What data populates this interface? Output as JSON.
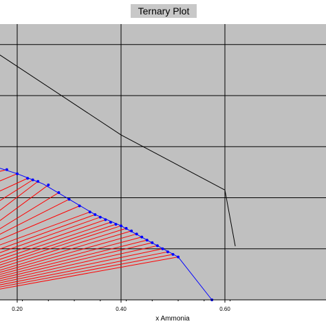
{
  "chart_data": {
    "type": "scatter",
    "title": "Ternary Plot",
    "xlabel": "x Ammonia",
    "ylabel": "",
    "xlim": [
      0.16,
      0.62
    ],
    "ylim": [
      0.0,
      0.54
    ],
    "x_ticks": [
      "0.20",
      "0.40",
      "0.60"
    ],
    "grid": true,
    "background_color": "#c0c0c0",
    "gridline_color": "#000000",
    "colors": {
      "phase_boundary": "#0000ff",
      "tie_lines": "#ff0000",
      "reference_line": "#000000"
    },
    "reference_line": {
      "points": [
        [
          0.16,
          0.484
        ],
        [
          0.4,
          0.323
        ],
        [
          0.6,
          0.215
        ],
        [
          0.62,
          0.105
        ]
      ]
    },
    "phase_boundary": {
      "points": [
        [
          0.16,
          0.26
        ],
        [
          0.2,
          0.247
        ],
        [
          0.25,
          0.227
        ],
        [
          0.3,
          0.197
        ],
        [
          0.35,
          0.167
        ],
        [
          0.4,
          0.145
        ],
        [
          0.45,
          0.117
        ],
        [
          0.51,
          0.084
        ],
        [
          0.575,
          0.0
        ]
      ]
    },
    "tie_line_ends": [
      [
        0.18,
        0.255
      ],
      [
        0.2,
        0.247
      ],
      [
        0.22,
        0.238
      ],
      [
        0.23,
        0.235
      ],
      [
        0.24,
        0.232
      ],
      [
        0.26,
        0.225
      ],
      [
        0.28,
        0.21
      ],
      [
        0.3,
        0.197
      ],
      [
        0.32,
        0.184
      ],
      [
        0.34,
        0.172
      ],
      [
        0.35,
        0.167
      ],
      [
        0.36,
        0.162
      ],
      [
        0.37,
        0.157
      ],
      [
        0.38,
        0.152
      ],
      [
        0.39,
        0.148
      ],
      [
        0.4,
        0.145
      ],
      [
        0.41,
        0.14
      ],
      [
        0.42,
        0.135
      ],
      [
        0.43,
        0.129
      ],
      [
        0.44,
        0.123
      ],
      [
        0.45,
        0.117
      ],
      [
        0.46,
        0.112
      ],
      [
        0.47,
        0.106
      ],
      [
        0.48,
        0.1
      ],
      [
        0.49,
        0.094
      ],
      [
        0.5,
        0.089
      ],
      [
        0.51,
        0.084
      ]
    ],
    "tie_line_starts": [
      [
        0.16,
        0.25
      ],
      [
        0.16,
        0.23
      ],
      [
        0.16,
        0.21
      ],
      [
        0.16,
        0.19
      ],
      [
        0.16,
        0.17
      ],
      [
        0.16,
        0.15
      ],
      [
        0.16,
        0.135
      ],
      [
        0.16,
        0.125
      ],
      [
        0.16,
        0.115
      ],
      [
        0.16,
        0.105
      ],
      [
        0.16,
        0.097
      ],
      [
        0.16,
        0.09
      ],
      [
        0.16,
        0.083
      ],
      [
        0.16,
        0.077
      ],
      [
        0.16,
        0.071
      ],
      [
        0.16,
        0.066
      ],
      [
        0.16,
        0.061
      ],
      [
        0.16,
        0.056
      ],
      [
        0.16,
        0.052
      ],
      [
        0.16,
        0.048
      ],
      [
        0.16,
        0.044
      ],
      [
        0.16,
        0.04
      ],
      [
        0.16,
        0.036
      ],
      [
        0.16,
        0.032
      ],
      [
        0.16,
        0.028
      ],
      [
        0.16,
        0.024
      ],
      [
        0.16,
        0.02
      ]
    ]
  }
}
